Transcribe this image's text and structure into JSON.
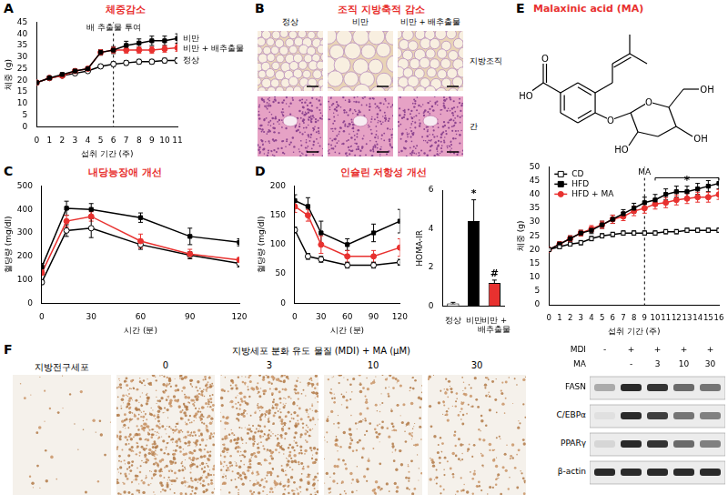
{
  "chart_data": [
    {
      "letter": "A",
      "title": "체중감소",
      "type": "line",
      "x_label": "섭취 기간 (주)",
      "y_label": "체중 (g)",
      "x": [
        0,
        1,
        2,
        3,
        4,
        5,
        6,
        7,
        8,
        9,
        10,
        11
      ],
      "xlim": [
        0,
        11
      ],
      "xticks": [
        0,
        1,
        2,
        3,
        4,
        5,
        6,
        7,
        8,
        9,
        10,
        11
      ],
      "ylim": [
        0,
        45
      ],
      "yticks": [
        0,
        5,
        10,
        15,
        20,
        25,
        30,
        35,
        40,
        45
      ],
      "grid": false,
      "legend": "right",
      "annotation": {
        "x": 6,
        "text": "배 추출물 투여"
      },
      "series": [
        {
          "name": "비만",
          "color": "#000000",
          "marker": "square",
          "values": [
            19,
            21,
            22.5,
            24,
            25,
            32,
            33,
            35,
            36,
            37,
            37,
            38
          ],
          "errors": [
            0.5,
            0.6,
            0.7,
            0.8,
            0.8,
            1.2,
            1.5,
            1.8,
            1.8,
            2,
            2,
            2
          ]
        },
        {
          "name": "비만 + 배추출물",
          "color": "#e8312f",
          "marker": "circle",
          "values": [
            19,
            21,
            22,
            24,
            25,
            32,
            33,
            33,
            33,
            33,
            33.5,
            34
          ],
          "errors": [
            0.5,
            0.5,
            0.6,
            0.7,
            0.8,
            1,
            1.2,
            1.3,
            1.3,
            1.4,
            1.4,
            1.5
          ]
        },
        {
          "name": "정상",
          "color": "#000000",
          "marker": "open-circle",
          "values": [
            19,
            21,
            22,
            23,
            24,
            26,
            27,
            27.5,
            28,
            28,
            28.5,
            28.5
          ],
          "errors": [
            0.4,
            0.5,
            0.5,
            0.6,
            0.6,
            0.8,
            1,
            1,
            1,
            1,
            1,
            1.2
          ]
        }
      ]
    },
    {
      "letter": "C",
      "title": "내당능장애 개선",
      "type": "line",
      "x_label": "시간 (분)",
      "y_label": "혈당량 (mg/dl)",
      "x": [
        0,
        15,
        30,
        60,
        90,
        120
      ],
      "xlim": [
        0,
        120
      ],
      "xticks": [
        0,
        30,
        60,
        90,
        120
      ],
      "ylim": [
        0,
        500
      ],
      "yticks": [
        0,
        100,
        200,
        300,
        400,
        500
      ],
      "grid": false,
      "series": [
        {
          "color": "#000000",
          "marker": "square",
          "values": [
            155,
            405,
            400,
            365,
            285,
            260
          ],
          "errors": [
            15,
            30,
            25,
            20,
            35,
            15
          ]
        },
        {
          "color": "#e8312f",
          "marker": "circle",
          "values": [
            130,
            350,
            370,
            265,
            210,
            185
          ],
          "errors": [
            10,
            25,
            20,
            30,
            20,
            10
          ]
        },
        {
          "color": "#000000",
          "marker": "open-circle",
          "values": [
            90,
            310,
            320,
            250,
            205,
            170
          ],
          "errors": [
            10,
            25,
            40,
            20,
            15,
            15
          ]
        }
      ]
    },
    {
      "letter": "D",
      "title": "인슐린 저항성 개선",
      "type": "line",
      "x_label": "시간 (분)",
      "y_label": "혈당량 (mg/dl)",
      "x": [
        0,
        15,
        30,
        60,
        90,
        120
      ],
      "xlim": [
        0,
        120
      ],
      "xticks": [
        0,
        30,
        60,
        90,
        120
      ],
      "ylim": [
        0,
        200
      ],
      "yticks": [
        0,
        50,
        100,
        150,
        200
      ],
      "grid": false,
      "series": [
        {
          "color": "#000000",
          "marker": "square",
          "values": [
            175,
            165,
            120,
            100,
            120,
            140
          ],
          "errors": [
            10,
            15,
            20,
            10,
            15,
            20
          ]
        },
        {
          "color": "#e8312f",
          "marker": "circle",
          "values": [
            165,
            150,
            100,
            80,
            80,
            95
          ],
          "errors": [
            10,
            10,
            15,
            10,
            10,
            15
          ]
        },
        {
          "color": "#000000",
          "marker": "open-circle",
          "values": [
            125,
            80,
            75,
            65,
            65,
            70
          ],
          "errors": [
            5,
            5,
            5,
            5,
            5,
            5
          ]
        }
      ]
    },
    {
      "type": "bar",
      "y_label": "HOMA-IR",
      "categories": [
        "정상",
        "비만",
        "비만 + 배추출물"
      ],
      "values": [
        0.15,
        4.4,
        1.2
      ],
      "errors": [
        0.05,
        1.1,
        0.15
      ],
      "colors": [
        "#ffffff",
        "#000000",
        "#e8312f"
      ],
      "ylim": [
        0,
        6
      ],
      "yticks": [
        0,
        2,
        4,
        6
      ],
      "grid": false,
      "annotations": [
        {
          "category": "비만",
          "text": "*"
        },
        {
          "category": "비만 + 배추출물",
          "text": "#"
        }
      ]
    },
    {
      "type": "line",
      "x_label": "섭취 기간 (주)",
      "y_label": "체중 (g)",
      "x": [
        0,
        1,
        2,
        3,
        4,
        5,
        6,
        7,
        8,
        9,
        10,
        11,
        12,
        13,
        14,
        15,
        16
      ],
      "xlim": [
        0,
        16
      ],
      "xticks": [
        0,
        1,
        2,
        3,
        4,
        5,
        6,
        7,
        8,
        9,
        10,
        11,
        12,
        13,
        14,
        15,
        16
      ],
      "ylim": [
        0,
        50
      ],
      "yticks": [
        0,
        5,
        10,
        15,
        20,
        25,
        30,
        35,
        40,
        45,
        50
      ],
      "grid": false,
      "legend": "top-left",
      "annotation": {
        "x": 9,
        "text": "MA"
      },
      "bracket": {
        "from": 10,
        "to": 16,
        "text": "*"
      },
      "series": [
        {
          "name": "CD",
          "color": "#000000",
          "marker": "open-square",
          "values": [
            20,
            21,
            22,
            22.5,
            24,
            25,
            25.5,
            26,
            26,
            26,
            26,
            26.5,
            26.5,
            27,
            27,
            27,
            27
          ],
          "errors": [
            0.5,
            0.6,
            0.7,
            0.8,
            0.8,
            0.8,
            0.8,
            0.8,
            0.8,
            0.8,
            0.8,
            0.8,
            0.8,
            0.8,
            0.8,
            0.8,
            0.8
          ]
        },
        {
          "name": "HFD",
          "color": "#000000",
          "marker": "square",
          "values": [
            20,
            22,
            24,
            26,
            27,
            29,
            31,
            33,
            35,
            37,
            38,
            40,
            41,
            41,
            42,
            43,
            44
          ],
          "errors": [
            0.5,
            0.8,
            1,
            1,
            1.2,
            1.3,
            1.5,
            1.5,
            1.8,
            2,
            2,
            2,
            2,
            2,
            2,
            2,
            2
          ]
        },
        {
          "name": "HFD + MA",
          "color": "#e8312f",
          "marker": "circle",
          "values": [
            20,
            22,
            24,
            26,
            27.5,
            29,
            31,
            32,
            34,
            35,
            36.5,
            37,
            38,
            38.5,
            39,
            39,
            40
          ],
          "errors": [
            0.5,
            0.8,
            1,
            1,
            1.2,
            1.3,
            1.5,
            1.5,
            1.7,
            1.8,
            1.8,
            1.8,
            1.8,
            1.8,
            1.8,
            1.8,
            1.8
          ]
        }
      ]
    }
  ],
  "histology": {
    "letter": "B",
    "title": "조직 지방축적 감소",
    "columns": [
      "정상",
      "비만",
      "비만 + 배추출물"
    ],
    "rows": [
      "지방조직",
      "간"
    ]
  },
  "structure": {
    "letter": "E",
    "title": "Malaxinic acid (MA)",
    "atoms": [
      "O",
      "HO",
      "O",
      "O",
      "OH",
      "HO",
      "OH"
    ]
  },
  "differentiation": {
    "letter": "F",
    "left_label": "지방전구세포",
    "header": "지방세포 분화 유도 물질 (MDI) + MA (μM)",
    "doses": [
      0,
      3,
      10,
      30
    ],
    "stain": [
      0.05,
      1,
      0.85,
      0.35,
      0.3
    ],
    "blot": {
      "header_rows": [
        {
          "name": "MDI",
          "values": [
            "-",
            "+",
            "+",
            "+",
            "+"
          ]
        },
        {
          "name": "MA",
          "values": [
            null,
            "-",
            "3",
            "10",
            "30"
          ]
        }
      ],
      "rows": [
        {
          "name": "FASN",
          "intensity": [
            0.3,
            0.9,
            0.85,
            0.6,
            0.55
          ]
        },
        {
          "name": "C/EBPα",
          "intensity": [
            0.05,
            0.9,
            0.8,
            0.55,
            0.5
          ]
        },
        {
          "name": "PPARγ",
          "intensity": [
            0.1,
            0.9,
            0.85,
            0.6,
            0.5
          ]
        },
        {
          "name": "β-actin",
          "intensity": [
            0.9,
            0.9,
            0.9,
            0.9,
            0.9
          ]
        }
      ]
    }
  }
}
